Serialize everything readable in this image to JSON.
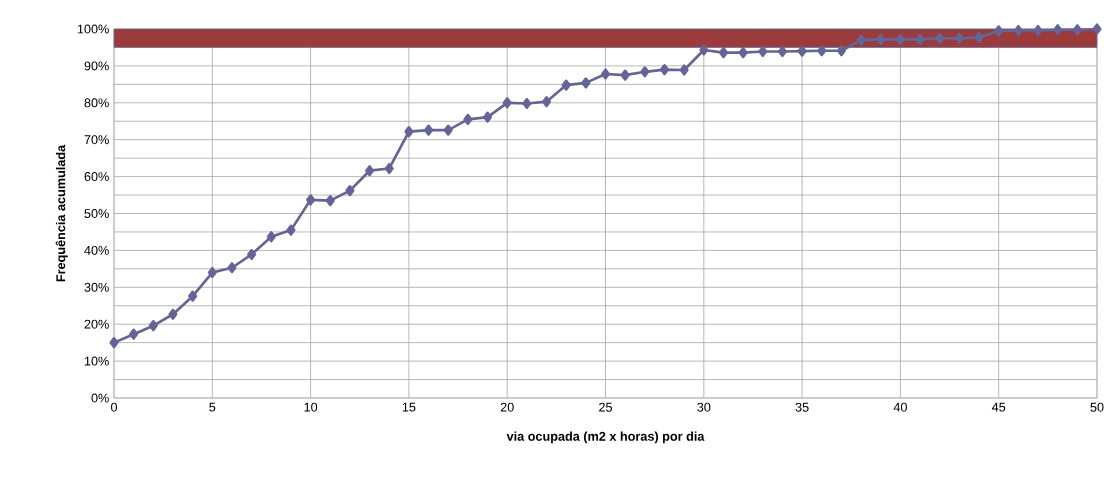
{
  "chart_data": {
    "type": "line",
    "xlabel": "via ocupada (m2 x horas) por dia",
    "ylabel": "Frequência acumulada",
    "x": [
      0,
      1,
      2,
      3,
      4,
      5,
      6,
      7,
      8,
      9,
      10,
      11,
      12,
      13,
      14,
      15,
      16,
      17,
      18,
      19,
      20,
      21,
      22,
      23,
      24,
      25,
      26,
      27,
      28,
      29,
      30,
      31,
      32,
      33,
      34,
      35,
      36,
      37,
      38,
      39,
      40,
      41,
      42,
      43,
      44,
      45,
      46,
      47,
      48,
      49,
      50
    ],
    "series": [
      {
        "color": "#646496",
        "values": [
          15,
          17.3,
          19.6,
          22.7,
          27.6,
          34,
          35.3,
          38.9,
          43.7,
          45.5,
          53.7,
          53.5,
          56.2,
          61.6,
          62.2,
          72.2,
          72.6,
          72.6,
          75.5,
          76.1,
          80,
          79.8,
          80.3,
          84.8,
          85.4,
          87.8,
          87.5,
          88.4,
          89,
          88.9,
          94.3,
          93.6,
          93.6,
          93.9,
          93.9,
          94,
          94.1,
          94.1,
          97,
          97.2,
          97.2,
          97.2,
          97.5,
          97.5,
          97.7,
          99.5,
          99.6,
          99.6,
          99.8,
          99.8,
          100
        ]
      }
    ],
    "xlim": [
      0,
      50
    ],
    "xticks": [
      0,
      5,
      10,
      15,
      20,
      25,
      30,
      35,
      40,
      45,
      50
    ],
    "ylim": [
      0,
      100
    ],
    "yticks": [
      {
        "value": 0,
        "label": "0%"
      },
      {
        "value": 5,
        "label": null
      },
      {
        "value": 10,
        "label": "10%"
      },
      {
        "value": 15,
        "label": null
      },
      {
        "value": 20,
        "label": "20%"
      },
      {
        "value": 25,
        "label": null
      },
      {
        "value": 30,
        "label": "30%"
      },
      {
        "value": 35,
        "label": null
      },
      {
        "value": 40,
        "label": "40%"
      },
      {
        "value": 45,
        "label": null
      },
      {
        "value": 50,
        "label": "50%"
      },
      {
        "value": 55,
        "label": null
      },
      {
        "value": 60,
        "label": "60%"
      },
      {
        "value": 65,
        "label": null
      },
      {
        "value": 70,
        "label": "70%"
      },
      {
        "value": 75,
        "label": null
      },
      {
        "value": 80,
        "label": "80%"
      },
      {
        "value": 85,
        "label": null
      },
      {
        "value": 90,
        "label": "90%"
      },
      {
        "value": 95,
        "label": null
      },
      {
        "value": 100,
        "label": "100%"
      }
    ],
    "bands": [
      {
        "axis": "y",
        "from": 95,
        "to": 100,
        "color": "#9b3b3b"
      }
    ],
    "grid": true,
    "marker": "diamond",
    "line_style": "solid"
  }
}
